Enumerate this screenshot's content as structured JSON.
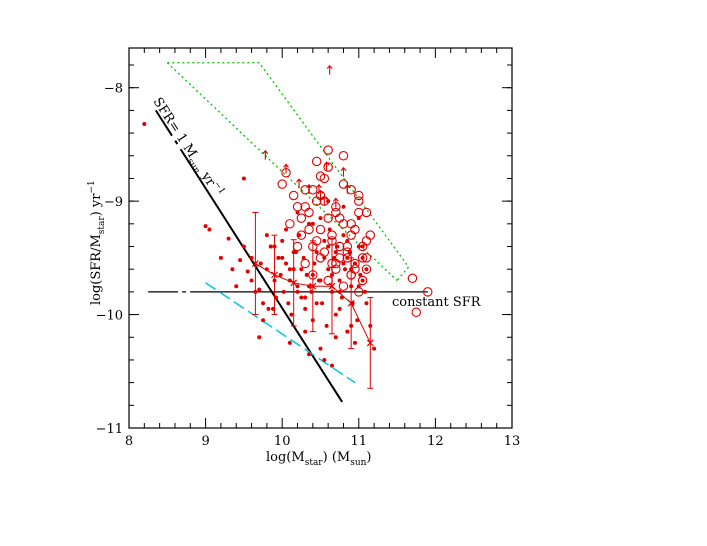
{
  "chart_data": {
    "type": "scatter",
    "xlabel": "log(M",
    "xlabel_sub": "star",
    "xlabel_end": ") (M",
    "xlabel_sub2": "sun",
    "xlabel_close": ")",
    "ylabel": "log(SFR/M",
    "ylabel_sub": "star",
    "ylabel_end": ") yr",
    "ylabel_sup": "−1",
    "xlim": [
      8,
      13
    ],
    "ylim": [
      -11,
      -7.65
    ],
    "xticks": [
      "8",
      "9",
      "10",
      "11",
      "12",
      "13"
    ],
    "yticks": [
      "−8",
      "−9",
      "−10",
      "−11"
    ],
    "annotation_sfr": "SFR= 1 M",
    "annotation_sfr_sub": "sun",
    "annotation_sfr_end": " yr",
    "annotation_sfr_sup": "−1",
    "annotation_const": "constant SFR",
    "colors": {
      "points": "#e00000",
      "green": "#00c000",
      "cyan": "#00c8e0",
      "axis": "#000000"
    },
    "series": [
      {
        "marker": "filled-dot",
        "x": [
          8.2,
          9.0,
          9.05,
          9.2,
          9.3,
          9.35,
          9.45,
          9.5,
          9.5,
          9.55,
          9.6,
          9.65,
          9.7,
          9.72,
          9.75,
          9.8,
          9.82,
          9.85,
          9.9,
          9.92,
          9.95,
          9.98,
          10.0,
          10.02,
          10.05,
          10.08,
          10.1,
          10.12,
          10.15,
          10.18,
          10.2,
          10.22,
          10.25,
          10.28,
          10.3,
          10.32,
          10.35,
          10.38,
          10.4,
          10.42,
          10.45,
          10.48,
          10.5,
          10.52,
          10.55,
          10.58,
          10.6,
          10.62,
          10.65,
          10.68,
          10.7,
          10.72,
          10.75,
          10.78,
          10.8,
          10.82,
          10.85,
          10.88,
          10.9,
          10.92,
          10.95,
          10.98,
          11.0,
          11.02,
          11.05,
          11.08,
          11.1,
          11.15,
          11.2,
          9.4,
          9.6,
          9.75,
          9.88,
          10.05,
          10.15,
          10.25,
          10.35,
          10.45,
          10.55,
          10.65,
          10.75,
          10.85,
          10.95,
          11.05,
          9.7,
          9.9,
          10.1,
          10.3,
          10.5,
          10.7,
          10.9,
          11.1,
          9.8,
          10.0,
          10.2,
          10.4,
          10.6,
          10.8,
          11.0,
          10.1,
          10.3,
          10.5,
          10.7,
          10.9,
          10.2,
          10.4,
          10.6,
          10.8,
          11.0,
          10.35,
          10.55,
          10.75,
          10.95,
          10.65,
          10.85,
          11.05
        ],
        "y": [
          -8.32,
          -9.22,
          -9.25,
          -9.5,
          -9.33,
          -9.6,
          -9.52,
          -9.4,
          -8.8,
          -9.62,
          -9.7,
          -9.8,
          -9.78,
          -9.55,
          -9.9,
          -9.6,
          -9.95,
          -9.4,
          -9.7,
          -9.85,
          -9.5,
          -9.65,
          -9.35,
          -9.8,
          -9.55,
          -9.9,
          -9.7,
          -10.0,
          -9.6,
          -9.45,
          -9.75,
          -9.3,
          -9.85,
          -9.5,
          -9.95,
          -9.65,
          -9.2,
          -9.8,
          -10.05,
          -9.55,
          -9.45,
          -9.7,
          -9.15,
          -9.9,
          -9.35,
          -10.1,
          -9.6,
          -9.25,
          -9.8,
          -9.5,
          -10.0,
          -9.4,
          -9.7,
          -9.85,
          -9.3,
          -9.6,
          -10.15,
          -9.45,
          -9.75,
          -9.9,
          -9.55,
          -10.05,
          -9.4,
          -9.65,
          -9.5,
          -9.8,
          -9.6,
          -10.1,
          -10.3,
          -9.75,
          -9.5,
          -10.05,
          -9.95,
          -9.25,
          -9.45,
          -9.6,
          -9.75,
          -9.9,
          -9.5,
          -9.65,
          -9.8,
          -9.35,
          -9.55,
          -9.7,
          -10.2,
          -9.4,
          -9.6,
          -9.85,
          -9.7,
          -9.45,
          -9.6,
          -9.9,
          -9.3,
          -9.5,
          -9.8,
          -9.65,
          -9.4,
          -9.55,
          -9.75,
          -10.25,
          -10.15,
          -10.3,
          -10.2,
          -10.1,
          -9.1,
          -9.2,
          -9.0,
          -9.05,
          -9.15,
          -10.35,
          -10.4,
          -9.95,
          -10.25,
          -10.45,
          -9.5,
          -9.4
        ],
        "name": ""
      },
      {
        "marker": "open-circle",
        "x": [
          10.0,
          10.05,
          10.1,
          10.15,
          10.2,
          10.25,
          10.3,
          10.35,
          10.4,
          10.45,
          10.5,
          10.55,
          10.6,
          10.65,
          10.7,
          10.75,
          10.8,
          10.85,
          10.9,
          10.95,
          11.0,
          11.05,
          11.1,
          11.15,
          10.2,
          10.3,
          10.4,
          10.5,
          10.6,
          10.7,
          10.8,
          10.9,
          11.0,
          11.1,
          10.25,
          10.35,
          10.45,
          10.55,
          10.65,
          10.75,
          10.85,
          10.95,
          11.05,
          10.3,
          10.5,
          10.7,
          10.9,
          11.1,
          10.4,
          10.6,
          10.8,
          11.0,
          10.55,
          10.75,
          10.95,
          10.65,
          10.85,
          11.05,
          10.7,
          10.9,
          11.7,
          11.75,
          11.9,
          10.6,
          10.45,
          10.5,
          10.8,
          10.9,
          11.0,
          11.1
        ],
        "y": [
          -8.85,
          -8.75,
          -9.2,
          -8.95,
          -9.05,
          -9.3,
          -8.9,
          -9.1,
          -9.4,
          -9.0,
          -9.25,
          -8.8,
          -9.15,
          -9.35,
          -9.05,
          -9.5,
          -9.2,
          -9.45,
          -9.3,
          -9.55,
          -9.1,
          -9.4,
          -9.6,
          -9.3,
          -9.4,
          -9.55,
          -9.65,
          -9.5,
          -9.7,
          -9.6,
          -9.75,
          -9.65,
          -9.8,
          -9.5,
          -9.15,
          -9.25,
          -9.35,
          -9.45,
          -9.55,
          -9.4,
          -9.5,
          -9.6,
          -9.7,
          -9.05,
          -8.95,
          -9.1,
          -9.2,
          -9.35,
          -8.9,
          -8.7,
          -8.85,
          -8.95,
          -9.0,
          -9.15,
          -9.25,
          -9.3,
          -9.4,
          -9.5,
          -9.55,
          -9.65,
          -9.68,
          -9.98,
          -9.8,
          -8.55,
          -8.65,
          -8.78,
          -8.6,
          -8.9,
          -9.0,
          -9.1
        ],
        "name": ""
      },
      {
        "marker": "up-arrow",
        "x": [
          9.78,
          10.05,
          10.22,
          10.35,
          10.5,
          10.58,
          10.62,
          10.8,
          10.85,
          10.48,
          10.55,
          10.7
        ],
        "y": [
          -8.6,
          -8.72,
          -8.85,
          -8.9,
          -8.95,
          -8.7,
          -7.85,
          -8.75,
          -8.9,
          -8.9,
          -9.0,
          -9.02
        ],
        "name": ""
      }
    ],
    "binned_means": {
      "x": [
        9.65,
        9.9,
        10.15,
        10.4,
        10.65,
        10.9,
        11.15
      ],
      "y": [
        -9.55,
        -9.65,
        -9.72,
        -9.75,
        -9.75,
        -9.9,
        -10.25
      ],
      "yerr": [
        0.45,
        0.35,
        0.38,
        0.4,
        0.42,
        0.4,
        0.4
      ]
    },
    "lines": {
      "sfr_one": {
        "x": [
          8.35,
          11.0
        ],
        "y": [
          -8.2,
          -11.0
        ]
      },
      "constant_sfr": {
        "x": [
          8.25,
          11.9
        ],
        "y": [
          -9.8,
          -9.8
        ]
      },
      "cyan": {
        "x": [
          9.0,
          10.95
        ],
        "y": [
          -9.72,
          -10.6
        ]
      },
      "green_poly": {
        "x": [
          8.5,
          9.7,
          11.65,
          11.5
        ],
        "y": [
          -7.78,
          -7.78,
          -9.58,
          -9.7
        ]
      },
      "green_left": {
        "x": [
          8.5,
          11.5
        ],
        "y": [
          -7.78,
          -9.7
        ]
      }
    }
  }
}
